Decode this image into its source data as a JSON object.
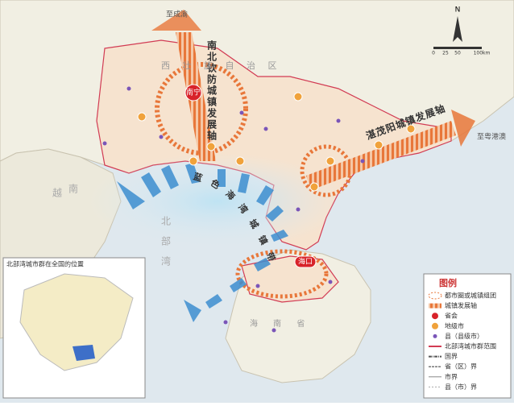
{
  "map": {
    "north": "N",
    "scale_ticks": [
      "0",
      "25",
      "50",
      "100km"
    ],
    "axes": {
      "north_south": "南北钦防城镇发展轴",
      "east_west": "湛茂阳城镇发展轴",
      "bay_belt": "蓝色海湾城镇带",
      "to_west": "至成渝",
      "to_east": "至粤港澳"
    },
    "region_labels": {
      "guangxi": "西 壮 族 自 治 区",
      "vietnam_1": "越",
      "vietnam_2": "南",
      "gulf_1": "北",
      "gulf_2": "部",
      "gulf_3": "湾",
      "hainan": "海 南 省"
    },
    "cities": {
      "capital_1": "南宁",
      "capital_2": "海口"
    },
    "inset": {
      "title": "北部湾城市群在全国的位置"
    },
    "legend": {
      "title": "图例",
      "items": [
        "都市圈或城镇组团",
        "城镇发展轴",
        "省会",
        "地级市",
        "县（县级市）",
        "北部湾城市群范围",
        "国界",
        "省（区）界",
        "市界",
        "县（市）界"
      ]
    }
  }
}
